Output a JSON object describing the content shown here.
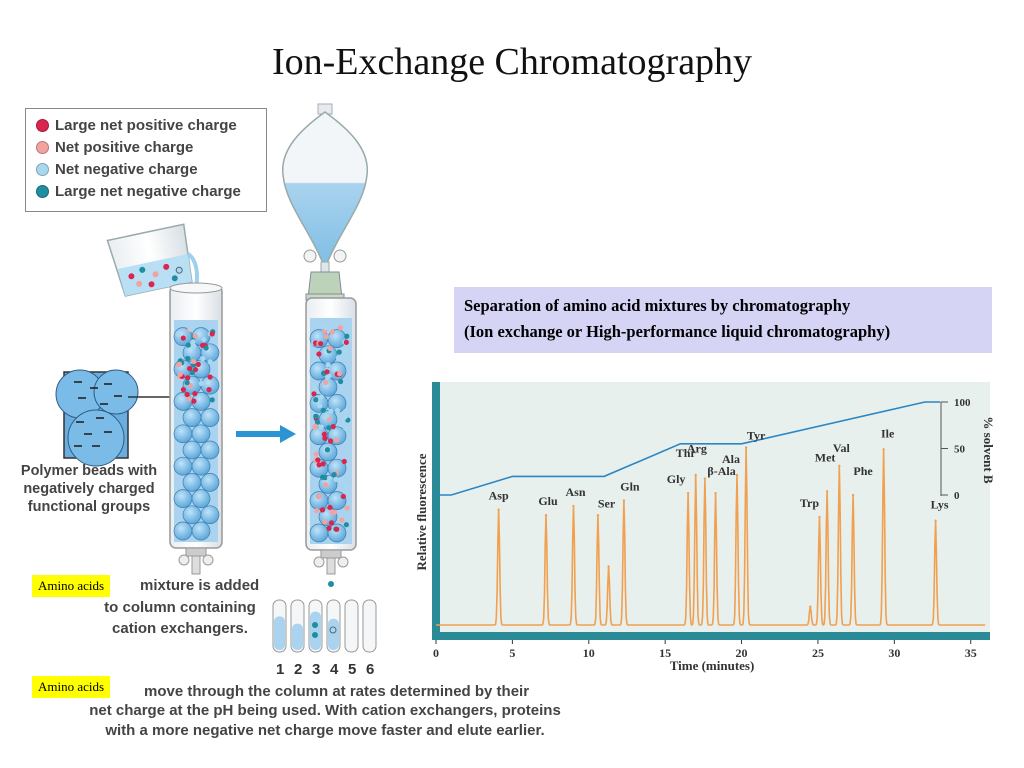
{
  "title": "Ion-Exchange Chromatography",
  "legend": {
    "items": [
      {
        "label": "Large net positive charge",
        "color": "#d9254f"
      },
      {
        "label": "Net positive charge",
        "color": "#f2a3a0"
      },
      {
        "label": "Net negative charge",
        "color": "#a8d8ef"
      },
      {
        "label": "Large net negative charge",
        "color": "#1e8ea0"
      }
    ]
  },
  "beads_label": [
    "Polymer beads with",
    "negatively charged",
    "functional groups"
  ],
  "step1": {
    "tag": "Amino acids",
    "lines": [
      "mixture is added",
      "to column containing",
      "cation exchangers."
    ]
  },
  "step2": {
    "tag": "Amino acids",
    "lines": [
      "move through the column at rates determined by their",
      "net charge at the pH being used. With cation exchangers, proteins",
      "with a more negative net charge move faster and elute earlier."
    ]
  },
  "tube_numbers": [
    "1",
    "2",
    "3",
    "4",
    "5",
    "6"
  ],
  "caption": {
    "line1": "Separation of amino acid mixtures by chromatography",
    "line2": "(Ion exchange or High-performance liquid chromatography)"
  },
  "chart_data": {
    "type": "line",
    "xlabel": "Time (minutes)",
    "ylabel": "Relative fluorescence",
    "y2label": "% solvent B",
    "xlim": [
      0,
      36
    ],
    "x_ticks": [
      0,
      5,
      10,
      15,
      20,
      25,
      30,
      35
    ],
    "y2_ticks": [
      0,
      50,
      100
    ],
    "colors": {
      "chromatogram": "#f0a050",
      "gradient": "#2b86c2",
      "axis_bar": "#2a8a96",
      "plot_bg": "#e8f0ee"
    },
    "peaks": [
      {
        "name": "Asp",
        "x": 4.1,
        "height": 0.63
      },
      {
        "name": "Glu",
        "x": 7.2,
        "height": 0.6
      },
      {
        "name": "Asn",
        "x": 9.0,
        "height": 0.65
      },
      {
        "name": "",
        "x": 10.6,
        "height": 0.6
      },
      {
        "name": "",
        "x": 11.3,
        "height": 0.32
      },
      {
        "name": "Ser",
        "x": 10.9,
        "height": 0.0
      },
      {
        "name": "Gln",
        "x": 12.3,
        "height": 0.68
      },
      {
        "name": "Gly",
        "x": 16.5,
        "height": 0.72
      },
      {
        "name": "Thr",
        "x": 17.0,
        "height": 0.82
      },
      {
        "name": "Arg",
        "x": 17.6,
        "height": 0.8
      },
      {
        "name": "β-Ala",
        "x": 18.3,
        "height": 0.72
      },
      {
        "name": "Ala",
        "x": 19.7,
        "height": 0.82
      },
      {
        "name": "Tyr",
        "x": 20.3,
        "height": 0.97
      },
      {
        "name": "",
        "x": 24.5,
        "height": 0.1
      },
      {
        "name": "Trp",
        "x": 25.1,
        "height": 0.59
      },
      {
        "name": "Met",
        "x": 25.6,
        "height": 0.73
      },
      {
        "name": "Val",
        "x": 26.4,
        "height": 0.87
      },
      {
        "name": "Phe",
        "x": 27.3,
        "height": 0.71
      },
      {
        "name": "Ile",
        "x": 29.3,
        "height": 0.96
      },
      {
        "name": "Lys",
        "x": 32.7,
        "height": 0.57
      }
    ],
    "gradient": {
      "x": [
        0,
        1,
        5,
        11,
        16,
        20,
        32,
        33
      ],
      "y": [
        0,
        0,
        20,
        20,
        55,
        55,
        100,
        100
      ]
    }
  }
}
